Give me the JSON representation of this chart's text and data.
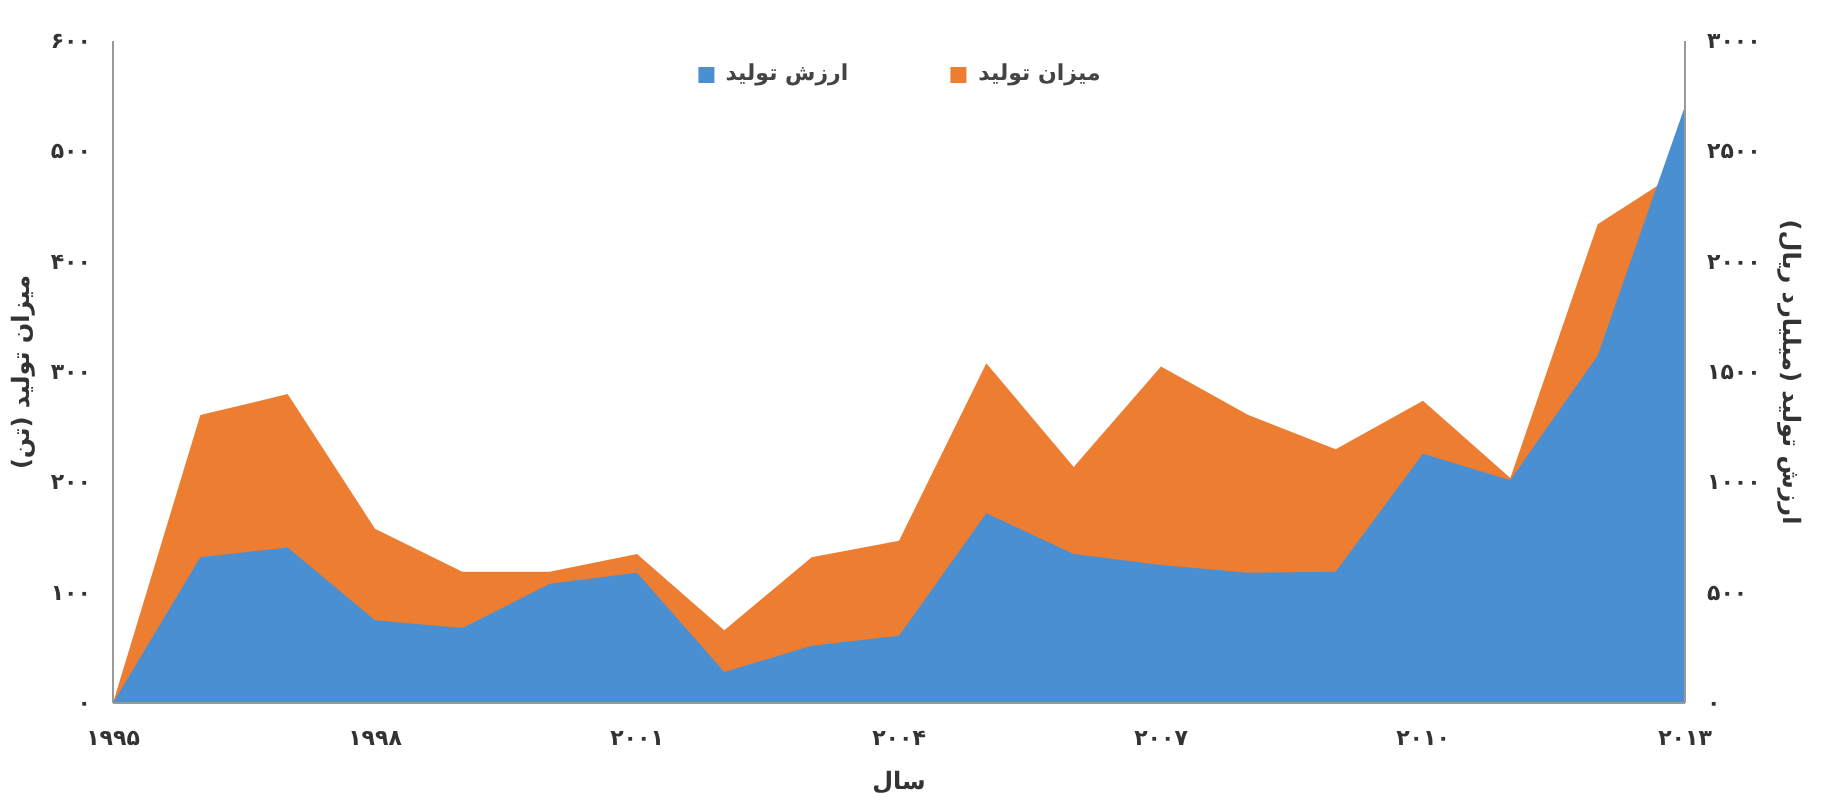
{
  "chart_data": {
    "type": "area",
    "xlabel": "سال",
    "ylabel": "میزان تولید (تن)",
    "y2label": "ارزش تولید (میلیارد ریال)",
    "x": [
      1995,
      1996,
      1997,
      1998,
      1999,
      2000,
      2001,
      2002,
      2003,
      2004,
      2005,
      2006,
      2007,
      2008,
      2009,
      2010,
      2011,
      2012,
      2013
    ],
    "series": [
      {
        "name": "میزان تولید",
        "color": "#ed7d31",
        "values": [
          0,
          261,
          280,
          158,
          119,
          119,
          135,
          66,
          132,
          147,
          308,
          214,
          305,
          261,
          230,
          274,
          204,
          434,
          485
        ]
      },
      {
        "name": "ارزش تولید",
        "color": "#4a8fd1",
        "axis": "y2",
        "values": [
          0,
          660,
          705,
          375,
          340,
          540,
          590,
          140,
          260,
          305,
          860,
          675,
          625,
          590,
          595,
          1130,
          1010,
          1575,
          2705
        ]
      }
    ],
    "xlim": [
      1995,
      2013
    ],
    "xticks": [
      {
        "value": 1995,
        "label": "۱۹۹۵"
      },
      {
        "value": 1998,
        "label": "۱۹۹۸"
      },
      {
        "value": 2001,
        "label": "۲۰۰۱"
      },
      {
        "value": 2004,
        "label": "۲۰۰۴"
      },
      {
        "value": 2007,
        "label": "۲۰۰۷"
      },
      {
        "value": 2010,
        "label": "۲۰۱۰"
      },
      {
        "value": 2013,
        "label": "۲۰۱۳"
      }
    ],
    "ylim": [
      0,
      600
    ],
    "yticks": [
      {
        "value": 0,
        "label": "۰"
      },
      {
        "value": 100,
        "label": "۱۰۰"
      },
      {
        "value": 200,
        "label": "۲۰۰"
      },
      {
        "value": 300,
        "label": "۳۰۰"
      },
      {
        "value": 400,
        "label": "۴۰۰"
      },
      {
        "value": 500,
        "label": "۵۰۰"
      },
      {
        "value": 600,
        "label": "۶۰۰"
      }
    ],
    "y2lim": [
      0,
      3000
    ],
    "y2ticks": [
      {
        "value": 0,
        "label": "۰"
      },
      {
        "value": 500,
        "label": "۵۰۰"
      },
      {
        "value": 1000,
        "label": "۱۰۰۰"
      },
      {
        "value": 1500,
        "label": "۱۵۰۰"
      },
      {
        "value": 2000,
        "label": "۲۰۰۰"
      },
      {
        "value": 2500,
        "label": "۲۵۰۰"
      },
      {
        "value": 3000,
        "label": "۳۰۰۰"
      }
    ],
    "grid": false,
    "legend": "top"
  }
}
